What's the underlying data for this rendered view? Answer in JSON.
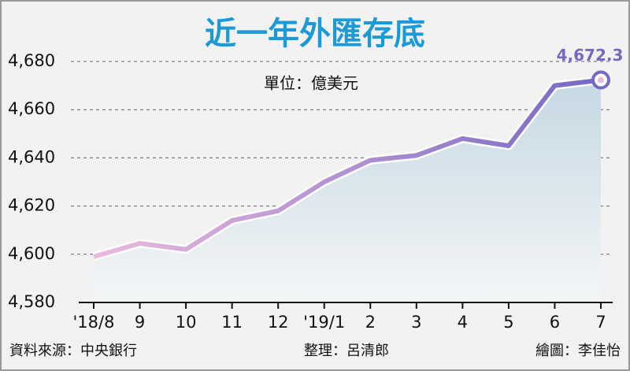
{
  "chart_data": {
    "type": "area-line",
    "title": "近一年外匯存底",
    "unit": "單位：億美元",
    "source": "資料來源：中央銀行",
    "editor": "整理：呂清郎",
    "artist": "繪圖：李佳怡",
    "categories": [
      "'18/8",
      "9",
      "10",
      "11",
      "12",
      "'19/1",
      "2",
      "3",
      "4",
      "5",
      "6",
      "7"
    ],
    "values": [
      4599,
      4604.5,
      4602,
      4614,
      4618,
      4630,
      4639,
      4641,
      4648,
      4645,
      4670,
      4672.3
    ],
    "value_labels": [
      null,
      null,
      null,
      null,
      null,
      null,
      null,
      null,
      null,
      null,
      null,
      "4,672.3"
    ],
    "ylim": [
      4580,
      4680
    ],
    "yticks": [
      {
        "value": 4580,
        "label": "4,580"
      },
      {
        "value": 4600,
        "label": "4,600"
      },
      {
        "value": 4620,
        "label": "4,620"
      },
      {
        "value": 4640,
        "label": "4,640"
      },
      {
        "value": 4660,
        "label": "4,660"
      },
      {
        "value": 4680,
        "label": "4,680"
      }
    ],
    "grid": true,
    "colors": [
      "#ebbbde",
      "#7668c4"
    ],
    "area_color": "#c5d8e3"
  }
}
